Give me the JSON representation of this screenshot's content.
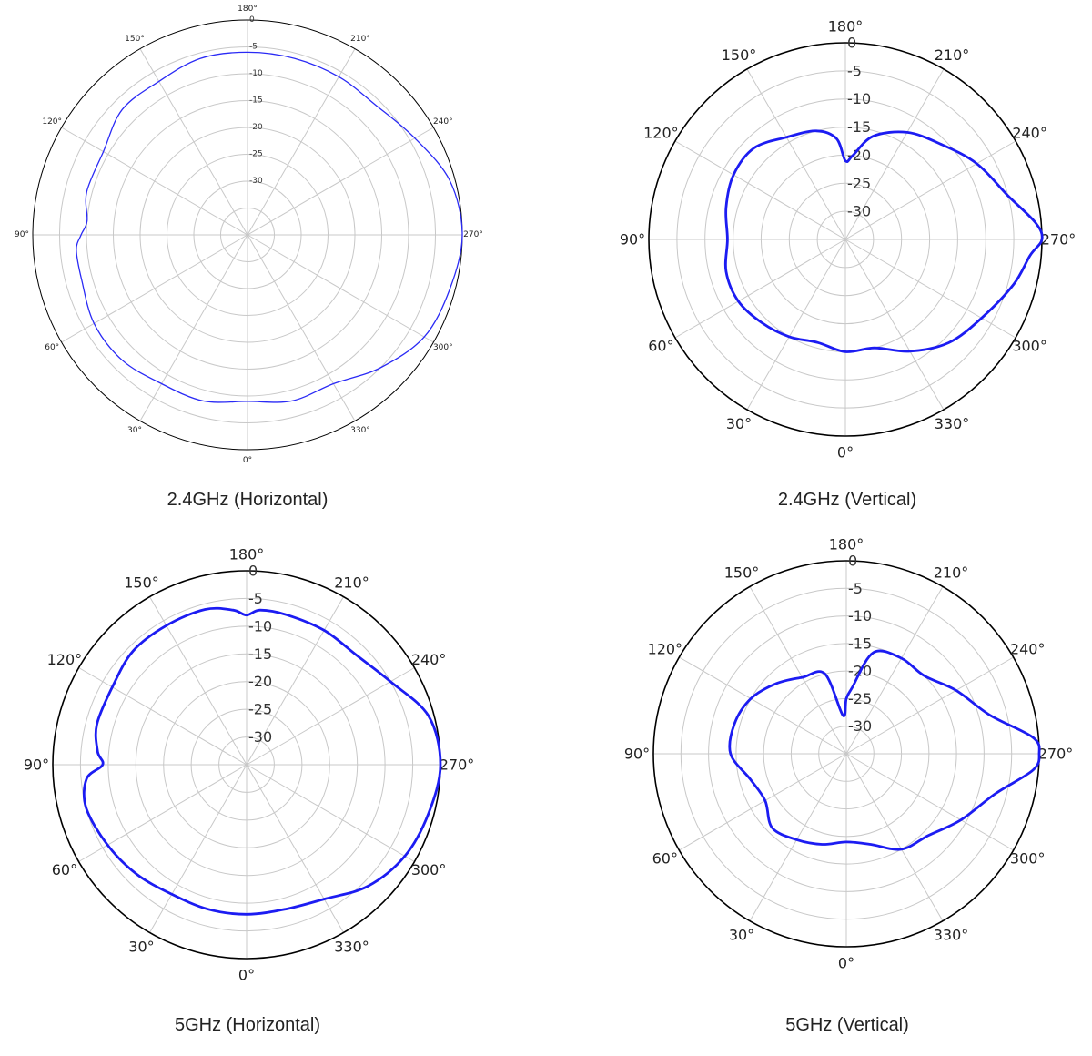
{
  "chart_data": [
    {
      "type": "polar-line",
      "title": "2.4GHz (Horizontal)",
      "theta_unit": "deg",
      "theta_ticks": [
        "0°",
        "30°",
        "60°",
        "90°",
        "120°",
        "150°",
        "180°",
        "210°",
        "240°",
        "270°",
        "300°",
        "330°"
      ],
      "r_ticks": [
        "0",
        "-5",
        "-10",
        "-15",
        "-20",
        "-25",
        "-30"
      ],
      "r_range": [
        -40,
        0
      ],
      "grid": true,
      "line_color": "#2a2af5",
      "series": [
        {
          "theta": [
            0,
            15,
            30,
            45,
            60,
            75,
            85,
            90,
            95,
            105,
            120,
            135,
            150,
            165,
            180,
            195,
            210,
            225,
            240,
            255,
            270,
            285,
            300,
            315,
            330,
            345,
            360
          ],
          "r": [
            -9,
            -8,
            -8,
            -7,
            -7,
            -8,
            -8,
            -9,
            -10,
            -9,
            -9,
            -7,
            -7,
            -6,
            -6,
            -6,
            -6,
            -6,
            -4,
            -1,
            0,
            -1,
            -2,
            -5,
            -8,
            -8,
            -9
          ]
        }
      ]
    },
    {
      "type": "polar-line",
      "title": "2.4GHz (Vertical)",
      "theta_unit": "deg",
      "theta_ticks": [
        "0°",
        "30°",
        "60°",
        "90°",
        "120°",
        "150°",
        "180°",
        "210°",
        "240°",
        "270°",
        "300°",
        "330°"
      ],
      "r_ticks": [
        "0",
        "-5",
        "-10",
        "-15",
        "-20",
        "-25",
        "-30"
      ],
      "r_range": [
        -35,
        0
      ],
      "grid": true,
      "line_color": "#1c1cf2",
      "series": [
        {
          "theta": [
            0,
            15,
            30,
            45,
            60,
            75,
            90,
            105,
            120,
            135,
            150,
            165,
            175,
            180,
            185,
            195,
            210,
            225,
            240,
            255,
            265,
            270,
            275,
            285,
            300,
            315,
            330,
            345,
            360
          ],
          "r": [
            -15,
            -16,
            -15,
            -14,
            -13,
            -13,
            -14,
            -13,
            -12,
            -12,
            -14,
            -15,
            -17,
            -21,
            -20,
            -16,
            -13,
            -11,
            -8,
            -5,
            -1,
            0,
            -2,
            -4,
            -7,
            -9,
            -12,
            -15,
            -15
          ]
        }
      ]
    },
    {
      "type": "polar-line",
      "title": "5GHz (Horizontal)",
      "theta_unit": "deg",
      "theta_ticks": [
        "0°",
        "30°",
        "60°",
        "90°",
        "120°",
        "150°",
        "180°",
        "210°",
        "240°",
        "270°",
        "300°",
        "330°"
      ],
      "r_ticks": [
        "0",
        "-5",
        "-10",
        "-15",
        "-20",
        "-25",
        "-30"
      ],
      "r_range": [
        -35,
        0
      ],
      "grid": true,
      "line_color": "#1c1cf2",
      "series": [
        {
          "theta": [
            0,
            15,
            30,
            45,
            60,
            75,
            85,
            90,
            95,
            105,
            120,
            135,
            150,
            165,
            175,
            180,
            185,
            195,
            210,
            225,
            240,
            255,
            270,
            285,
            300,
            315,
            330,
            345,
            360
          ],
          "r": [
            -8,
            -8,
            -8,
            -7,
            -6,
            -5,
            -6,
            -9,
            -8,
            -7,
            -7,
            -6,
            -6,
            -6,
            -7,
            -8,
            -7,
            -7,
            -7,
            -7,
            -5,
            -1,
            0,
            -1,
            -2,
            -4,
            -7,
            -8,
            -8
          ]
        }
      ]
    },
    {
      "type": "polar-line",
      "title": "5GHz (Vertical)",
      "theta_unit": "deg",
      "theta_ticks": [
        "0°",
        "30°",
        "60°",
        "90°",
        "120°",
        "150°",
        "180°",
        "210°",
        "240°",
        "270°",
        "300°",
        "330°"
      ],
      "r_ticks": [
        "0",
        "-5",
        "-10",
        "-15",
        "-20",
        "-25",
        "-30"
      ],
      "r_range": [
        -35,
        0
      ],
      "grid": true,
      "line_color": "#1c1cf2",
      "series": [
        {
          "theta": [
            0,
            15,
            30,
            45,
            60,
            75,
            90,
            105,
            120,
            135,
            150,
            165,
            175,
            180,
            185,
            195,
            210,
            225,
            240,
            255,
            265,
            270,
            275,
            285,
            300,
            315,
            330,
            345,
            360
          ],
          "r": [
            -19,
            -18,
            -17,
            -16,
            -18,
            -17,
            -14,
            -14,
            -15,
            -17,
            -19,
            -20,
            -28,
            -25,
            -23,
            -16,
            -15,
            -15,
            -12,
            -8,
            -1,
            0,
            -1,
            -7,
            -11,
            -14,
            -15,
            -18,
            -19
          ]
        }
      ]
    }
  ]
}
